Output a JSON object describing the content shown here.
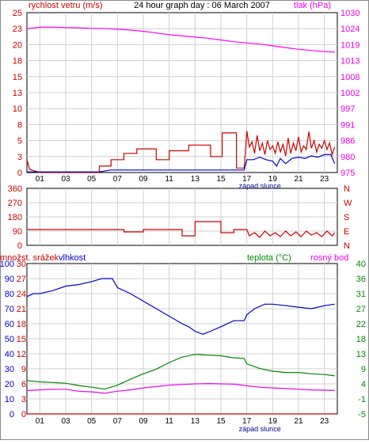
{
  "chart_data": [
    {
      "type": "line",
      "title": "24 hour graph day : 06 March 2007",
      "ylabel_left": "rychlost vetru (m/s)",
      "ylabel_right": "tlak (hPa)",
      "left_ticks": [
        "25",
        "23",
        "20",
        "18",
        "15",
        "13",
        "10",
        "8",
        "5",
        "3",
        "0"
      ],
      "left_ylim": [
        0,
        25
      ],
      "right_ticks": [
        "1030",
        "1024",
        "1019",
        "1013",
        "1008",
        "1002",
        "997",
        "991",
        "986",
        "980",
        "975"
      ],
      "right_ylim": [
        975,
        1030
      ],
      "x_ticks": [
        "01",
        "03",
        "05",
        "07",
        "09",
        "11",
        "13",
        "15",
        "17",
        "19",
        "21",
        "23"
      ],
      "xlim": [
        0,
        24
      ],
      "annotation": "západ slunce",
      "annotation_x": 17.0,
      "series": [
        {
          "axis": "right",
          "color": "#ff00ff",
          "points": [
            [
              0,
              1024.5
            ],
            [
              1,
              1025
            ],
            [
              2,
              1025
            ],
            [
              3,
              1024.9
            ],
            [
              4,
              1024.8
            ],
            [
              5,
              1024.6
            ],
            [
              6,
              1024.5
            ],
            [
              7,
              1024.3
            ],
            [
              8,
              1024
            ],
            [
              9,
              1023.6
            ],
            [
              10,
              1023
            ],
            [
              11,
              1022.4
            ],
            [
              12,
              1022
            ],
            [
              13,
              1021.6
            ],
            [
              14,
              1021.2
            ],
            [
              15,
              1020.6
            ],
            [
              16,
              1020
            ],
            [
              17,
              1019.6
            ],
            [
              18,
              1019.2
            ],
            [
              19,
              1018.6
            ],
            [
              20,
              1018
            ],
            [
              21,
              1017.4
            ],
            [
              22,
              1017
            ],
            [
              23,
              1016.6
            ],
            [
              23.8,
              1016.4
            ]
          ]
        },
        {
          "axis": "left",
          "color": "#cc0000",
          "points": [
            [
              0,
              2
            ],
            [
              0.2,
              0.5
            ],
            [
              1,
              0
            ],
            [
              5.6,
              0
            ],
            [
              5.6,
              1
            ],
            [
              6.5,
              1
            ],
            [
              6.5,
              2
            ],
            [
              7.5,
              2
            ],
            [
              7.5,
              3
            ],
            [
              8.5,
              3
            ],
            [
              8.5,
              3.7
            ],
            [
              10,
              3.7
            ],
            [
              10,
              2
            ],
            [
              11,
              2
            ],
            [
              11,
              3.4
            ],
            [
              12.5,
              3.4
            ],
            [
              12.5,
              4.3
            ],
            [
              14.2,
              4.3
            ],
            [
              14.2,
              2.5
            ],
            [
              15.1,
              2.5
            ],
            [
              15.1,
              6.2
            ],
            [
              16.2,
              6.2
            ],
            [
              16.2,
              0.7
            ],
            [
              16.8,
              0.7
            ],
            [
              17,
              6.5
            ],
            [
              17.2,
              4
            ],
            [
              17.4,
              4.8
            ],
            [
              17.6,
              3
            ],
            [
              17.8,
              5.8
            ],
            [
              18,
              3.4
            ],
            [
              18.2,
              4.6
            ],
            [
              18.4,
              2.8
            ],
            [
              18.6,
              5
            ],
            [
              18.8,
              3.6
            ],
            [
              19,
              4.2
            ],
            [
              19.2,
              3
            ],
            [
              19.4,
              4.8
            ],
            [
              19.6,
              3.2
            ],
            [
              19.8,
              4.4
            ],
            [
              20,
              2.6
            ],
            [
              20.2,
              5.4
            ],
            [
              20.4,
              3
            ],
            [
              20.6,
              4.6
            ],
            [
              20.8,
              3.4
            ],
            [
              21,
              5.6
            ],
            [
              21.2,
              3.2
            ],
            [
              21.4,
              4.2
            ],
            [
              21.6,
              3.6
            ],
            [
              21.8,
              6.4
            ],
            [
              22,
              3.8
            ],
            [
              22.2,
              5
            ],
            [
              22.4,
              3.2
            ],
            [
              22.6,
              4.4
            ],
            [
              22.8,
              3.8
            ],
            [
              23,
              5
            ],
            [
              23.2,
              3.6
            ],
            [
              23.4,
              4.6
            ],
            [
              23.6,
              2.8
            ],
            [
              23.8,
              4
            ]
          ]
        },
        {
          "axis": "left",
          "color": "#0000cc",
          "points": [
            [
              0,
              0.1
            ],
            [
              5.6,
              0.1
            ],
            [
              6.5,
              0.4
            ],
            [
              16.8,
              0.4
            ],
            [
              17,
              2
            ],
            [
              17.5,
              2
            ],
            [
              18,
              2.4
            ],
            [
              18.5,
              2
            ],
            [
              19,
              1.8
            ],
            [
              19.3,
              1
            ],
            [
              19.6,
              2.2
            ],
            [
              20,
              1.4
            ],
            [
              20.5,
              2.2
            ],
            [
              21,
              2.4
            ],
            [
              21.5,
              2.2
            ],
            [
              22,
              2.6
            ],
            [
              22.5,
              2.4
            ],
            [
              23,
              2.8
            ],
            [
              23.5,
              2.8
            ],
            [
              23.8,
              1.4
            ]
          ]
        }
      ]
    },
    {
      "type": "line",
      "left_ticks": [
        "360",
        "270",
        "180",
        "90",
        "0"
      ],
      "left_ylim": [
        0,
        360
      ],
      "right_ticks": [
        "N",
        "W",
        "S",
        "E",
        "N"
      ],
      "series": [
        {
          "axis": "left",
          "color": "#cc0000",
          "points": [
            [
              0,
              100
            ],
            [
              7.5,
              100
            ],
            [
              7.5,
              85
            ],
            [
              9,
              85
            ],
            [
              9,
              100
            ],
            [
              12,
              100
            ],
            [
              12,
              60
            ],
            [
              13,
              60
            ],
            [
              13,
              150
            ],
            [
              15,
              150
            ],
            [
              15,
              80
            ],
            [
              16,
              80
            ],
            [
              16,
              100
            ],
            [
              17,
              100
            ],
            [
              17.2,
              60
            ],
            [
              17.6,
              80
            ],
            [
              18,
              50
            ],
            [
              18.4,
              90
            ],
            [
              18.8,
              60
            ],
            [
              19.2,
              80
            ],
            [
              19.6,
              55
            ],
            [
              20,
              90
            ],
            [
              20.4,
              60
            ],
            [
              20.8,
              85
            ],
            [
              21.2,
              55
            ],
            [
              21.6,
              90
            ],
            [
              22,
              65
            ],
            [
              22.4,
              80
            ],
            [
              22.8,
              55
            ],
            [
              23.2,
              90
            ],
            [
              23.6,
              60
            ],
            [
              23.8,
              80
            ]
          ]
        }
      ]
    },
    {
      "type": "line",
      "ylabel_left_1": "množst. srážek",
      "ylabel_left_2": "vlhkost",
      "ylabel_right_1": "teplota (°C)",
      "ylabel_right_2": "rosný bod",
      "left_ticks_1": [
        "100",
        "90",
        "80",
        "70",
        "60",
        "50",
        "40",
        "30",
        "20",
        "10",
        "0"
      ],
      "left_ticks_2": [
        "30",
        "27",
        "24",
        "21",
        "18",
        "15",
        "12",
        "9",
        "6",
        "3",
        "0"
      ],
      "right_ticks": [
        "40",
        "36",
        "31",
        "27",
        "22",
        "18",
        "13",
        "9",
        "4",
        "-1",
        "-5"
      ],
      "humidity_ylim": [
        0,
        100
      ],
      "temp_ylim": [
        -5,
        40
      ],
      "x_ticks": [
        "01",
        "03",
        "05",
        "07",
        "09",
        "11",
        "13",
        "15",
        "17",
        "19",
        "21",
        "23"
      ],
      "xlim": [
        0,
        24
      ],
      "annotation": "západ slunce",
      "annotation_x": 17.0,
      "series": [
        {
          "axis": "humidity",
          "color": "#0000cc",
          "points": [
            [
              0,
              78
            ],
            [
              0.5,
              80
            ],
            [
              1,
              80
            ],
            [
              1.5,
              81
            ],
            [
              2,
              82
            ],
            [
              3,
              85
            ],
            [
              4,
              86
            ],
            [
              5,
              88
            ],
            [
              5.8,
              90
            ],
            [
              6.6,
              90
            ],
            [
              7,
              84
            ],
            [
              8,
              80
            ],
            [
              9,
              75
            ],
            [
              10,
              70
            ],
            [
              11,
              65
            ],
            [
              12,
              60
            ],
            [
              12.5,
              58
            ],
            [
              13,
              55
            ],
            [
              13.6,
              53
            ],
            [
              14.2,
              55
            ],
            [
              15,
              58
            ],
            [
              16,
              62
            ],
            [
              16.8,
              62
            ],
            [
              17,
              66
            ],
            [
              17.6,
              70
            ],
            [
              18.4,
              73
            ],
            [
              19,
              73
            ],
            [
              20,
              72
            ],
            [
              21,
              71
            ],
            [
              22,
              70
            ],
            [
              23,
              72
            ],
            [
              23.8,
              73
            ]
          ]
        },
        {
          "axis": "temp",
          "color": "#008800",
          "points": [
            [
              0,
              5
            ],
            [
              1,
              4.6
            ],
            [
              2,
              4.4
            ],
            [
              3,
              4.2
            ],
            [
              4,
              3.5
            ],
            [
              5,
              3
            ],
            [
              6,
              2.4
            ],
            [
              7,
              3.6
            ],
            [
              8,
              5.4
            ],
            [
              9,
              7
            ],
            [
              10,
              8.4
            ],
            [
              11,
              10.4
            ],
            [
              12,
              12
            ],
            [
              13,
              12.8
            ],
            [
              14,
              12.6
            ],
            [
              15,
              12.4
            ],
            [
              16,
              11.8
            ],
            [
              16.8,
              11.6
            ],
            [
              17,
              10
            ],
            [
              18,
              8.6
            ],
            [
              19,
              7.8
            ],
            [
              20,
              7.4
            ],
            [
              21,
              7.4
            ],
            [
              22,
              7
            ],
            [
              23,
              6.8
            ],
            [
              23.8,
              6.4
            ]
          ]
        },
        {
          "axis": "temp",
          "color": "#ee00ee",
          "points": [
            [
              0,
              2
            ],
            [
              1,
              2.2
            ],
            [
              2,
              2.4
            ],
            [
              3,
              2.4
            ],
            [
              4,
              1.8
            ],
            [
              5,
              1.6
            ],
            [
              6,
              1.2
            ],
            [
              7,
              1.8
            ],
            [
              8,
              2.2
            ],
            [
              9,
              2.8
            ],
            [
              10,
              3.2
            ],
            [
              11,
              3.6
            ],
            [
              12,
              3.8
            ],
            [
              13,
              4
            ],
            [
              14,
              4.1
            ],
            [
              15,
              4
            ],
            [
              16,
              3.9
            ],
            [
              17,
              3.4
            ],
            [
              18,
              3
            ],
            [
              19,
              2.8
            ],
            [
              20,
              2.6
            ],
            [
              21,
              2.4
            ],
            [
              22,
              2.2
            ],
            [
              23,
              2.1
            ],
            [
              23.8,
              2
            ]
          ]
        },
        {
          "axis": "humidity",
          "color": "#cc0000",
          "points": [
            [
              0,
              0
            ],
            [
              23.8,
              0
            ]
          ]
        }
      ]
    }
  ]
}
